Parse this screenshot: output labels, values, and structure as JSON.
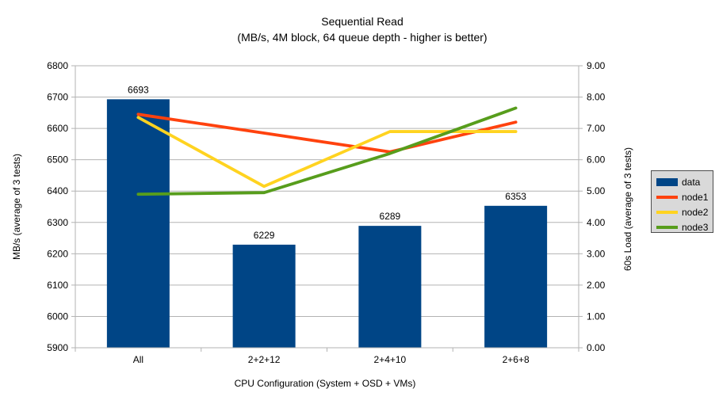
{
  "chart_data": {
    "type": "bar+line",
    "title": "Sequential Read",
    "subtitle": "(MB/s, 4M block, 64 queue depth - higher is better)",
    "categories": [
      "All",
      "2+2+12",
      "2+4+10",
      "2+6+8"
    ],
    "bar_series": {
      "name": "data",
      "color": "#004586",
      "axis": "left",
      "values": [
        6693,
        6229,
        6289,
        6353
      ],
      "data_labels": [
        "6693",
        "6229",
        "6289",
        "6353"
      ]
    },
    "line_series": [
      {
        "name": "node1",
        "color": "#ff420e",
        "axis": "right",
        "values": [
          7.45,
          6.85,
          6.25,
          7.2
        ]
      },
      {
        "name": "node2",
        "color": "#ffd320",
        "axis": "right",
        "values": [
          7.35,
          5.15,
          6.9,
          6.9
        ]
      },
      {
        "name": "node3",
        "color": "#579d1c",
        "axis": "right",
        "values": [
          4.9,
          4.95,
          6.2,
          7.65
        ]
      }
    ],
    "left_axis": {
      "label": "MB/s (average of 3 tests)",
      "min": 5900,
      "max": 6800,
      "step": 100,
      "ticks": [
        "6800",
        "6700",
        "6600",
        "6500",
        "6400",
        "6300",
        "6200",
        "6100",
        "6000",
        "5900"
      ]
    },
    "right_axis": {
      "label": "60s Load (average of 3 tests)",
      "min": 0,
      "max": 9,
      "step": 1,
      "ticks": [
        "9.00",
        "8.00",
        "7.00",
        "6.00",
        "5.00",
        "4.00",
        "3.00",
        "2.00",
        "1.00",
        "0.00"
      ]
    },
    "x_axis": {
      "label": "CPU Configuration (System + OSD + VMs)"
    },
    "legend": {
      "position": "right",
      "entries": [
        "data",
        "node1",
        "node2",
        "node3"
      ]
    },
    "grid": "horizontal",
    "colors": {
      "background": "#ffffff",
      "gridline": "#b3b3b3",
      "axis_line": "#b3b3b3",
      "text": "#000000",
      "legend_background": "#d9d9d9",
      "legend_border": "#4d4d4d"
    }
  }
}
